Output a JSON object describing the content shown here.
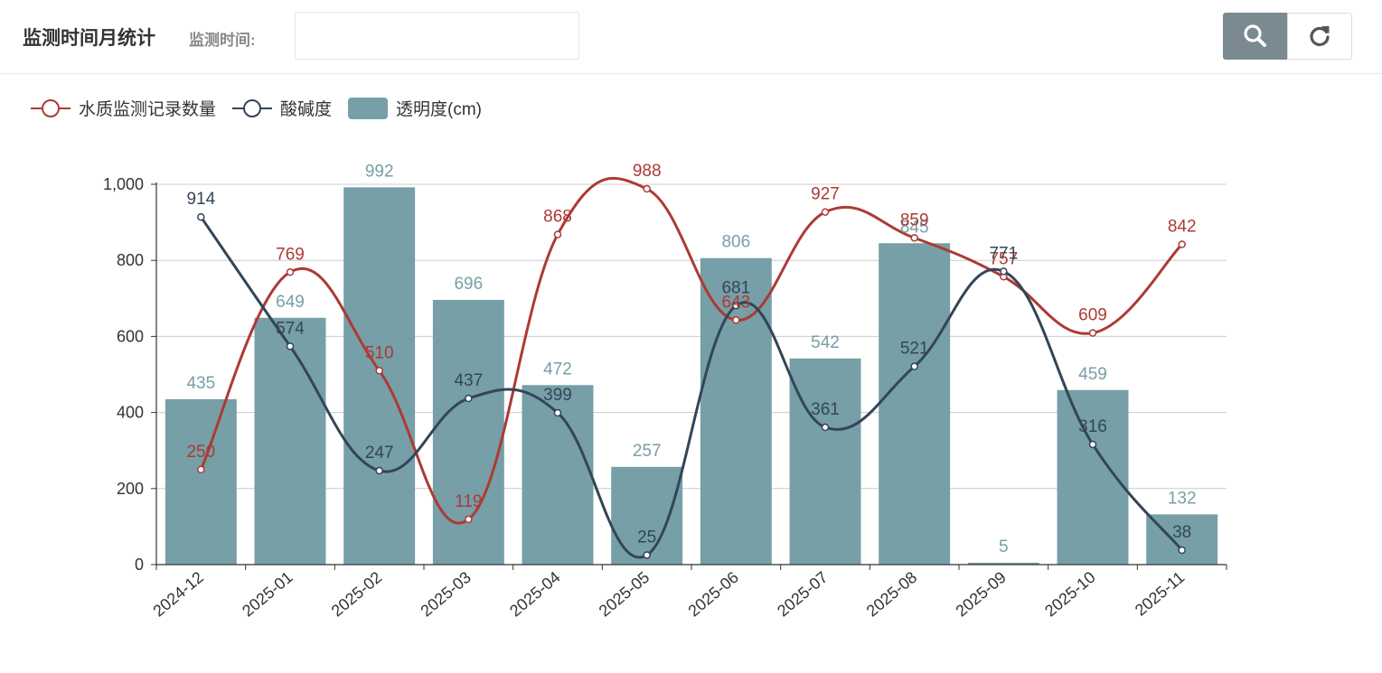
{
  "header": {
    "title": "监测时间月统计",
    "filter_label": "监测时间:",
    "filter_value": "",
    "search_icon": "search-icon",
    "refresh_icon": "refresh-icon"
  },
  "colors": {
    "records": "#ad3a34",
    "ph": "#344558",
    "transparency": "#769fa7",
    "search_button": "#7a8a90"
  },
  "chart_data": {
    "type": "bar",
    "categories": [
      "2024-12",
      "2025-01",
      "2025-02",
      "2025-03",
      "2025-04",
      "2025-05",
      "2025-06",
      "2025-07",
      "2025-08",
      "2025-09",
      "2025-10",
      "2025-11"
    ],
    "ylim": [
      0,
      1000
    ],
    "yticks": [
      "0",
      "200",
      "400",
      "600",
      "800",
      "1,000"
    ],
    "grid": true,
    "legend_position": "top-left",
    "series": [
      {
        "name": "水质监测记录数量",
        "type": "line",
        "smooth": true,
        "values": [
          250,
          769,
          510,
          119,
          868,
          988,
          643,
          927,
          859,
          757,
          609,
          842
        ]
      },
      {
        "name": "酸碱度",
        "type": "line",
        "smooth": true,
        "values": [
          914,
          574,
          247,
          437,
          399,
          25,
          681,
          361,
          521,
          771,
          316,
          38
        ]
      },
      {
        "name": "透明度(cm)",
        "type": "bar",
        "values": [
          435,
          649,
          992,
          696,
          472,
          257,
          806,
          542,
          845,
          5,
          459,
          132
        ]
      }
    ]
  }
}
